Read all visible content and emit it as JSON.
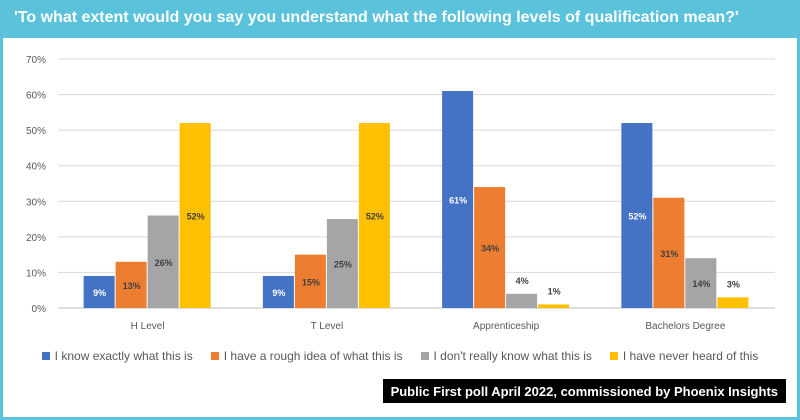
{
  "title": "'To what extent would you say you understand what the following levels of qualification mean?'",
  "footer": "Public First poll April 2022, commissioned by Phoenix Insights",
  "colors": {
    "header": "#5bc2dc",
    "series": [
      "#4472c4",
      "#ed7d31",
      "#a5a5a5",
      "#ffc000"
    ]
  },
  "chart_data": {
    "type": "bar",
    "categories": [
      "H Level",
      "T Level",
      "Apprenticeship",
      "Bachelors Degree"
    ],
    "series": [
      {
        "name": "I know exactly what this is",
        "values": [
          9,
          9,
          61,
          52
        ]
      },
      {
        "name": "I have a rough idea of what this is",
        "values": [
          13,
          15,
          34,
          31
        ]
      },
      {
        "name": "I don't really know what this is",
        "values": [
          26,
          25,
          4,
          14
        ]
      },
      {
        "name": "I have never heard of this",
        "values": [
          52,
          52,
          1,
          3
        ]
      }
    ],
    "value_format": "percent",
    "ylim": [
      0,
      70
    ],
    "yticks": [
      "0%",
      "10%",
      "20%",
      "30%",
      "40%",
      "50%",
      "60%",
      "70%"
    ],
    "grid": true,
    "legend_position": "bottom",
    "data_labels": true
  }
}
